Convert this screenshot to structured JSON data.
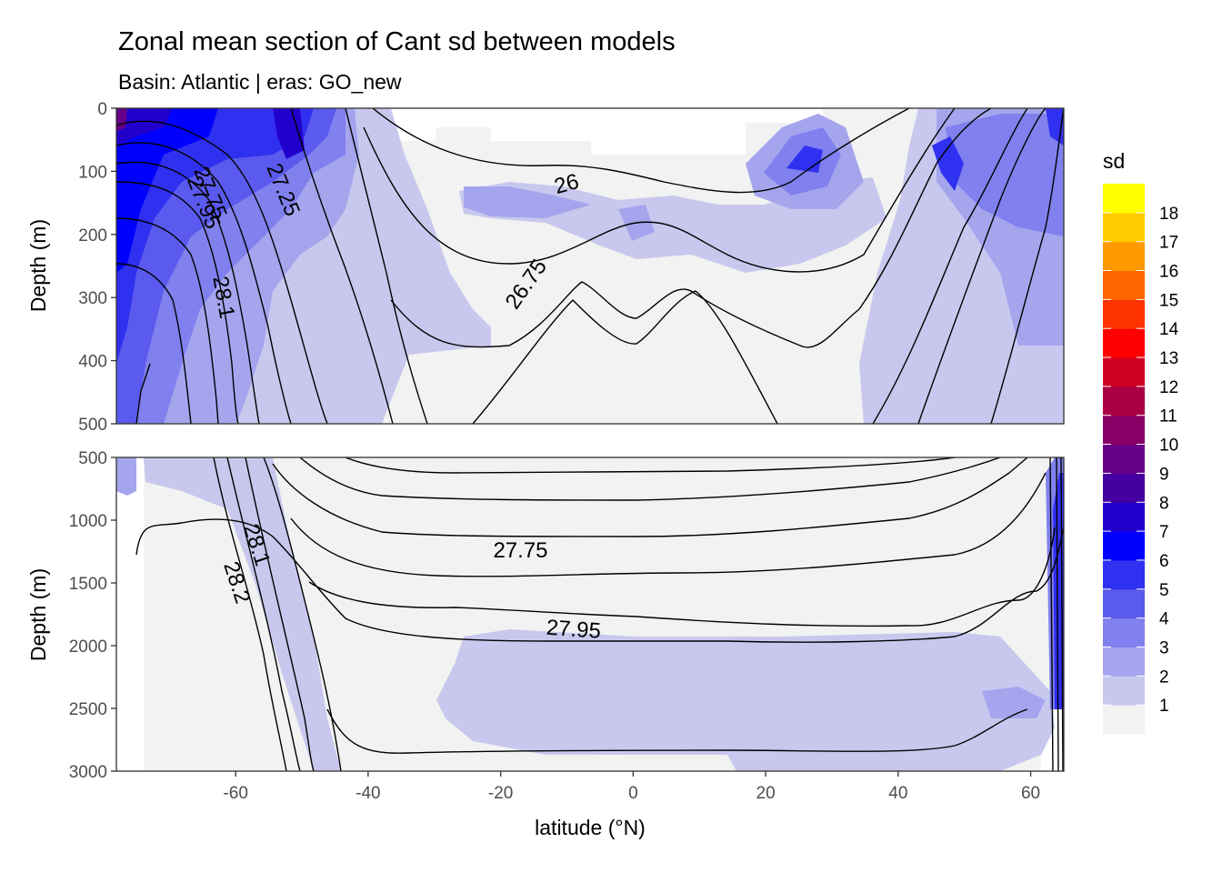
{
  "chart_data": {
    "type": "heatmap",
    "title": "Zonal mean section of Cant sd between models",
    "subtitle": "Basin: Atlantic | eras: GO_new",
    "xlabel": "latitude (°N)",
    "ylabel": "Depth (m)",
    "xlim": [
      -78,
      65
    ],
    "x_ticks": [
      -60,
      -40,
      -20,
      0,
      20,
      40,
      60
    ],
    "grid": false,
    "panels": [
      {
        "name": "upper",
        "ylim": [
          0,
          500
        ],
        "y_ticks": [
          0,
          100,
          200,
          300,
          400,
          500
        ],
        "contour_labels": [
          {
            "text": "27.75",
            "lat": -64,
            "depth": 135,
            "angle": 68
          },
          {
            "text": "27.95",
            "lat": -65,
            "depth": 150,
            "angle": 68
          },
          {
            "text": "27.25",
            "lat": -53,
            "depth": 130,
            "angle": 68
          },
          {
            "text": "28.1",
            "lat": -62,
            "depth": 300,
            "angle": 80
          },
          {
            "text": "26",
            "lat": -10,
            "depth": 122,
            "angle": -15
          },
          {
            "text": "26.75",
            "lat": -16,
            "depth": 280,
            "angle": -55
          }
        ]
      },
      {
        "name": "lower",
        "ylim": [
          500,
          3000
        ],
        "y_ticks": [
          500,
          1000,
          1500,
          2000,
          2500,
          3000
        ],
        "contour_labels": [
          {
            "text": "28.1",
            "lat": -57,
            "depth": 1200,
            "angle": 72
          },
          {
            "text": "28.2",
            "lat": -60,
            "depth": 1500,
            "angle": 72
          },
          {
            "text": "27.75",
            "lat": -17,
            "depth": 1250,
            "angle": 0
          },
          {
            "text": "27.95",
            "lat": -9,
            "depth": 1880,
            "angle": 4
          }
        ]
      }
    ],
    "legend": {
      "title": "sd",
      "position": "right",
      "labels": [
        "1",
        "2",
        "3",
        "4",
        "5",
        "6",
        "7",
        "8",
        "9",
        "10",
        "11",
        "12",
        "13",
        "14",
        "15",
        "16",
        "17",
        "18"
      ],
      "colors": [
        "#f2f2f2",
        "#c8c8ee",
        "#a5a5ee",
        "#8080ee",
        "#5a5aee",
        "#3030f0",
        "#0000ff",
        "#2200cc",
        "#4400a0",
        "#660088",
        "#880066",
        "#aa0044",
        "#d00020",
        "#ff0000",
        "#ff3300",
        "#ff6600",
        "#ff9900",
        "#ffcc00",
        "#ffff00"
      ]
    }
  }
}
